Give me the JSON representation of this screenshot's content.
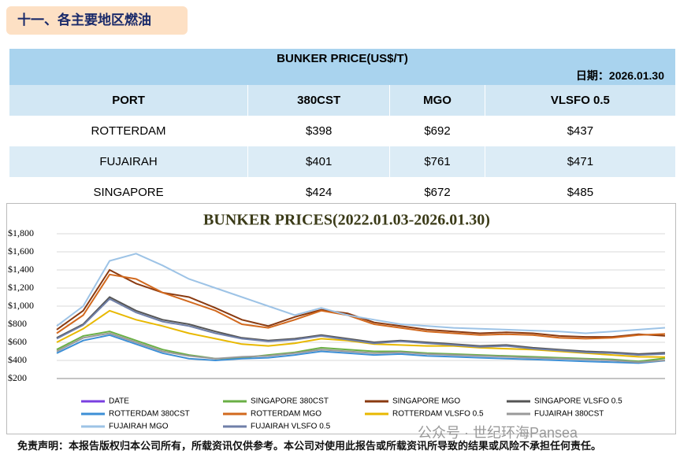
{
  "header": {
    "title": "十一、各主要地区燃油"
  },
  "table": {
    "title": "BUNKER PRICE(US$/T)",
    "date": "日期：2026.01.30",
    "header": [
      "PORT",
      "380CST",
      "MGO",
      "VLSFO 0.5"
    ],
    "rows": [
      [
        "ROTTERDAM",
        "$398",
        "$692",
        "$437"
      ],
      [
        "FUJAIRAH",
        "$401",
        "$761",
        "$471"
      ],
      [
        "SINGAPORE",
        "$424",
        "$672",
        "$485"
      ]
    ]
  },
  "chart_data": {
    "type": "line",
    "title": "BUNKER PRICES(2022.01.03-2026.01.30)",
    "ylim": [
      200,
      1800
    ],
    "yticks": [
      {
        "value": 200,
        "label": "$200"
      },
      {
        "value": 400,
        "label": "$400"
      },
      {
        "value": 600,
        "label": "$600"
      },
      {
        "value": 800,
        "label": "$800"
      },
      {
        "value": 1000,
        "label": "$1,000"
      },
      {
        "value": 1200,
        "label": "$1,200"
      },
      {
        "value": 1400,
        "label": "$1,400"
      },
      {
        "value": 1600,
        "label": "$1,600"
      },
      {
        "value": 1800,
        "label": "$1,800"
      }
    ],
    "grid": true,
    "series": [
      {
        "name": "DATE",
        "color": "#7a3fe0",
        "values": []
      },
      {
        "name": "SINGAPORE 380CST",
        "color": "#6aaf45",
        "values": [
          520,
          670,
          720,
          620,
          520,
          460,
          420,
          430,
          460,
          490,
          540,
          520,
          500,
          500,
          480,
          470,
          460,
          450,
          440,
          430,
          420,
          410,
          390,
          424
        ]
      },
      {
        "name": "SINGAPORE MGO",
        "color": "#8a3a10",
        "values": [
          740,
          950,
          1400,
          1250,
          1150,
          1100,
          980,
          850,
          780,
          880,
          960,
          920,
          820,
          780,
          740,
          720,
          700,
          710,
          700,
          670,
          660,
          660,
          690,
          672
        ]
      },
      {
        "name": "SINGAPORE VLSFO 0.5",
        "color": "#555555",
        "values": [
          650,
          800,
          1100,
          950,
          850,
          800,
          720,
          650,
          620,
          640,
          680,
          640,
          600,
          620,
          600,
          580,
          560,
          570,
          540,
          520,
          500,
          490,
          470,
          485
        ]
      },
      {
        "name": "ROTTERDAM 380CST",
        "color": "#3d8fd6",
        "values": [
          480,
          620,
          680,
          580,
          480,
          420,
          400,
          420,
          430,
          460,
          500,
          480,
          460,
          470,
          450,
          440,
          430,
          420,
          410,
          400,
          390,
          380,
          370,
          398
        ]
      },
      {
        "name": "ROTTERDAM MGO",
        "color": "#d2691e",
        "values": [
          700,
          900,
          1350,
          1300,
          1150,
          1050,
          950,
          800,
          760,
          850,
          950,
          900,
          800,
          760,
          720,
          700,
          680,
          690,
          680,
          650,
          640,
          650,
          680,
          692
        ]
      },
      {
        "name": "ROTTERDAM VLSFO 0.5",
        "color": "#e8b800",
        "values": [
          600,
          750,
          950,
          850,
          780,
          700,
          640,
          580,
          560,
          590,
          640,
          620,
          580,
          570,
          560,
          560,
          540,
          530,
          520,
          500,
          480,
          460,
          440,
          437
        ]
      },
      {
        "name": "FUJAIRAH  380CST",
        "color": "#999999",
        "values": [
          500,
          650,
          700,
          600,
          500,
          450,
          420,
          440,
          450,
          480,
          520,
          500,
          480,
          490,
          470,
          460,
          450,
          440,
          430,
          420,
          410,
          400,
          380,
          401
        ]
      },
      {
        "name": "FUJAIRAH MGO",
        "color": "#9dc3e6",
        "values": [
          780,
          1000,
          1500,
          1580,
          1450,
          1300,
          1200,
          1100,
          1000,
          900,
          980,
          900,
          850,
          800,
          780,
          760,
          750,
          740,
          730,
          720,
          700,
          720,
          740,
          761
        ]
      },
      {
        "name": "FUJAIRAH VLSFO 0.5",
        "color": "#6f7fa8",
        "values": [
          640,
          790,
          1080,
          930,
          830,
          780,
          700,
          640,
          610,
          630,
          670,
          630,
          590,
          610,
          590,
          570,
          550,
          560,
          530,
          510,
          490,
          480,
          460,
          471
        ]
      }
    ]
  },
  "footer": {
    "disclaimer": "免责声明：本报告版权归本公司所有，所载资讯仅供参考。本公司对使用此报告或所载资讯所导致的结果或风险不承担任何责任。",
    "watermark": "公众号 · 世纪环海Pansea"
  }
}
